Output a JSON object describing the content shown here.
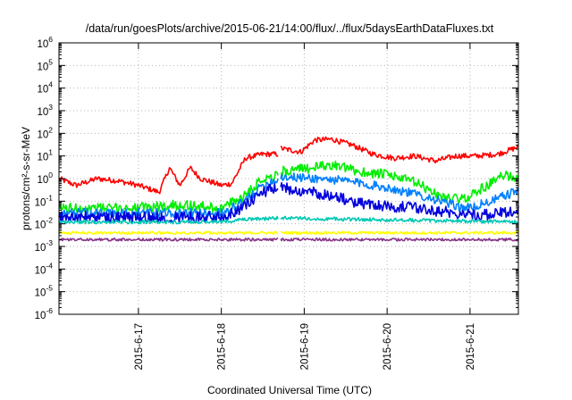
{
  "chart_data": {
    "type": "line",
    "title": "/data/run/goesPlots/archive/2015-06-21/14:00/flux/../flux/5daysEarthDataFluxes.txt",
    "xlabel": "Coordinated Universal Time (UTC)",
    "ylabel": "protons/cm²-s-sr-MeV",
    "yscale": "log",
    "grid": true,
    "xlim": [
      "2015-06-16T01:00",
      "2015-06-21T14:00"
    ],
    "ylim": [
      1e-06,
      1000000.0
    ],
    "x_ticks": [
      "2015-6-17",
      "2015-6-18",
      "2015-6-19",
      "2015-6-20",
      "2015-6-21"
    ],
    "y_ticks": [
      {
        "base": "10",
        "exp": "6"
      },
      {
        "base": "10",
        "exp": "5"
      },
      {
        "base": "10",
        "exp": "4"
      },
      {
        "base": "10",
        "exp": "3"
      },
      {
        "base": "10",
        "exp": "2"
      },
      {
        "base": "10",
        "exp": "1"
      },
      {
        "base": "10",
        "exp": "0"
      },
      {
        "base": "10",
        "exp": "-1"
      },
      {
        "base": "10",
        "exp": "-2"
      },
      {
        "base": "10",
        "exp": "-3"
      },
      {
        "base": "10",
        "exp": "-4"
      },
      {
        "base": "10",
        "exp": "-5"
      },
      {
        "base": "10",
        "exp": "-6"
      }
    ],
    "data_gap": [
      "2015-06-18T16:40",
      "2015-06-18T17:00"
    ],
    "series": [
      {
        "color": "#ff0000",
        "noise": 0.12,
        "points": [
          [
            "2015-06-16T01:00",
            1.0
          ],
          [
            "2015-06-16T06:00",
            0.5
          ],
          [
            "2015-06-16T12:00",
            1.0
          ],
          [
            "2015-06-16T18:00",
            0.8
          ],
          [
            "2015-06-17T00:00",
            0.5
          ],
          [
            "2015-06-17T06:00",
            0.25
          ],
          [
            "2015-06-17T09:00",
            3.0
          ],
          [
            "2015-06-17T12:00",
            0.5
          ],
          [
            "2015-06-17T15:00",
            3.0
          ],
          [
            "2015-06-17T18:00",
            1.0
          ],
          [
            "2015-06-18T00:00",
            0.5
          ],
          [
            "2015-06-18T03:00",
            0.6
          ],
          [
            "2015-06-18T07:00",
            8.0
          ],
          [
            "2015-06-18T12:00",
            12.0
          ],
          [
            "2015-06-18T16:40",
            12.0
          ],
          [
            "2015-06-18T17:00",
            22.0
          ],
          [
            "2015-06-18T23:00",
            15.0
          ],
          [
            "2015-06-19T03:00",
            50.0
          ],
          [
            "2015-06-19T08:00",
            55.0
          ],
          [
            "2015-06-19T14:00",
            30.0
          ],
          [
            "2015-06-19T20:00",
            12.0
          ],
          [
            "2015-06-20T02:00",
            8.0
          ],
          [
            "2015-06-20T08:00",
            10.0
          ],
          [
            "2015-06-20T14:00",
            6.0
          ],
          [
            "2015-06-20T20:00",
            10.0
          ],
          [
            "2015-06-21T02:00",
            10.0
          ],
          [
            "2015-06-21T08:00",
            12.0
          ],
          [
            "2015-06-21T14:00",
            25.0
          ]
        ]
      },
      {
        "color": "#00ee00",
        "noise": 0.22,
        "points": [
          [
            "2015-06-16T01:00",
            0.05
          ],
          [
            "2015-06-17T00:00",
            0.05
          ],
          [
            "2015-06-17T12:00",
            0.07
          ],
          [
            "2015-06-18T00:00",
            0.05
          ],
          [
            "2015-06-18T06:00",
            0.15
          ],
          [
            "2015-06-18T12:00",
            1.0
          ],
          [
            "2015-06-18T16:40",
            1.5
          ],
          [
            "2015-06-18T17:00",
            2.0
          ],
          [
            "2015-06-19T02:00",
            3.0
          ],
          [
            "2015-06-19T08:00",
            4.0
          ],
          [
            "2015-06-19T16:00",
            2.0
          ],
          [
            "2015-06-20T00:00",
            1.5
          ],
          [
            "2015-06-20T08:00",
            0.7
          ],
          [
            "2015-06-20T16:00",
            0.15
          ],
          [
            "2015-06-20T22:00",
            0.12
          ],
          [
            "2015-06-21T04:00",
            0.4
          ],
          [
            "2015-06-21T10:00",
            1.5
          ],
          [
            "2015-06-21T14:00",
            1.0
          ]
        ]
      },
      {
        "color": "#0080ff",
        "noise": 0.2,
        "points": [
          [
            "2015-06-16T01:00",
            0.03
          ],
          [
            "2015-06-17T00:00",
            0.03
          ],
          [
            "2015-06-18T00:00",
            0.03
          ],
          [
            "2015-06-18T06:00",
            0.08
          ],
          [
            "2015-06-18T12:00",
            0.5
          ],
          [
            "2015-06-18T16:40",
            1.0
          ],
          [
            "2015-06-18T17:00",
            1.2
          ],
          [
            "2015-06-19T04:00",
            1.0
          ],
          [
            "2015-06-19T12:00",
            0.8
          ],
          [
            "2015-06-20T00:00",
            0.4
          ],
          [
            "2015-06-20T12:00",
            0.15
          ],
          [
            "2015-06-20T20:00",
            0.06
          ],
          [
            "2015-06-21T00:00",
            0.05
          ],
          [
            "2015-06-21T06:00",
            0.1
          ],
          [
            "2015-06-21T14:00",
            0.3
          ]
        ]
      },
      {
        "color": "#0000dd",
        "noise": 0.25,
        "points": [
          [
            "2015-06-16T01:00",
            0.02
          ],
          [
            "2015-06-17T00:00",
            0.02
          ],
          [
            "2015-06-18T00:00",
            0.02
          ],
          [
            "2015-06-18T06:00",
            0.05
          ],
          [
            "2015-06-18T12:00",
            0.25
          ],
          [
            "2015-06-18T16:40",
            0.4
          ],
          [
            "2015-06-18T17:00",
            0.4
          ],
          [
            "2015-06-19T06:00",
            0.2
          ],
          [
            "2015-06-19T16:00",
            0.08
          ],
          [
            "2015-06-20T08:00",
            0.05
          ],
          [
            "2015-06-20T20:00",
            0.03
          ],
          [
            "2015-06-21T06:00",
            0.025
          ],
          [
            "2015-06-21T14:00",
            0.04
          ]
        ]
      },
      {
        "color": "#00c8b4",
        "noise": 0.08,
        "points": [
          [
            "2015-06-16T01:00",
            0.012
          ],
          [
            "2015-06-17T00:00",
            0.012
          ],
          [
            "2015-06-18T00:00",
            0.012
          ],
          [
            "2015-06-18T06:00",
            0.015
          ],
          [
            "2015-06-18T16:40",
            0.018
          ],
          [
            "2015-06-18T17:00",
            0.018
          ],
          [
            "2015-06-19T12:00",
            0.016
          ],
          [
            "2015-06-20T12:00",
            0.014
          ],
          [
            "2015-06-21T14:00",
            0.012
          ]
        ]
      },
      {
        "color": "#ffff00",
        "noise": 0.06,
        "points": [
          [
            "2015-06-16T01:00",
            0.004
          ],
          [
            "2015-06-18T16:40",
            0.004
          ],
          [
            "2015-06-18T17:00",
            0.004
          ],
          [
            "2015-06-21T14:00",
            0.004
          ]
        ]
      },
      {
        "color": "#883388",
        "noise": 0.06,
        "points": [
          [
            "2015-06-16T01:00",
            0.002
          ],
          [
            "2015-06-18T16:40",
            0.002
          ],
          [
            "2015-06-18T17:00",
            0.002
          ],
          [
            "2015-06-21T14:00",
            0.002
          ]
        ]
      }
    ]
  }
}
